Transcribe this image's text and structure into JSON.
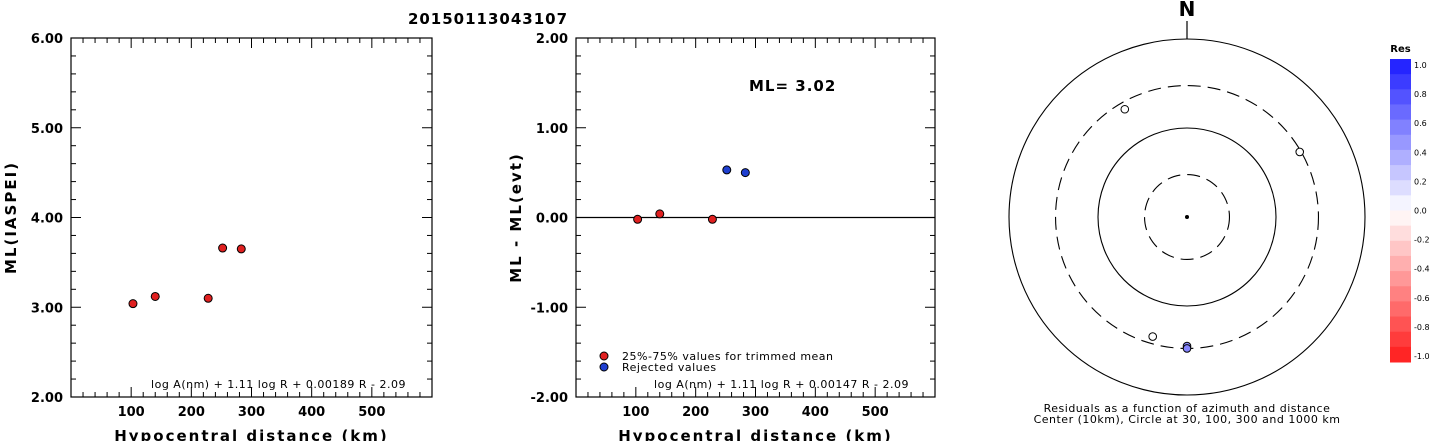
{
  "title": "20150113043107",
  "chart_data": [
    {
      "type": "scatter",
      "ylabel": "ML(IASPEI)",
      "xlabel": "Hypocentral distance (km)",
      "xlim": [
        0,
        600
      ],
      "ylim": [
        2.0,
        6.0
      ],
      "xticks": [
        "100",
        "200",
        "300",
        "400",
        "500"
      ],
      "yticks": [
        "2.00",
        "3.00",
        "4.00",
        "5.00",
        "6.00"
      ],
      "formula": "log A(nm) + 1.11 log R + 0.00189 R - 2.09",
      "points": [
        {
          "x": 103,
          "y": 3.04,
          "color": "#e02020"
        },
        {
          "x": 140,
          "y": 3.12,
          "color": "#e02020"
        },
        {
          "x": 228,
          "y": 3.1,
          "color": "#e02020"
        },
        {
          "x": 252,
          "y": 3.66,
          "color": "#e02020"
        },
        {
          "x": 283,
          "y": 3.65,
          "color": "#e02020"
        }
      ]
    },
    {
      "type": "scatter",
      "ylabel": "ML - ML(evt)",
      "xlabel": "Hypocentral distance (km)",
      "xlim": [
        0,
        600
      ],
      "ylim": [
        -2.0,
        2.0
      ],
      "xticks": [
        "100",
        "200",
        "300",
        "400",
        "500"
      ],
      "yticks": [
        "-2.00",
        "-1.00",
        "0.00",
        "1.00",
        "2.00"
      ],
      "ml_label": "ML= 3.02",
      "zero_line": true,
      "formula": "log A(nm) + 1.11 log R + 0.00147 R - 2.09",
      "legend": [
        {
          "label": "25%-75% values for trimmed mean",
          "color": "#e02020"
        },
        {
          "label": "Rejected values",
          "color": "#1f3fd0"
        }
      ],
      "points": [
        {
          "x": 103,
          "y": -0.02,
          "color": "#e02020"
        },
        {
          "x": 140,
          "y": 0.04,
          "color": "#e02020"
        },
        {
          "x": 228,
          "y": -0.02,
          "color": "#e02020"
        },
        {
          "x": 252,
          "y": 0.53,
          "color": "#1f3fd0"
        },
        {
          "x": 283,
          "y": 0.5,
          "color": "#1f3fd0"
        }
      ]
    },
    {
      "type": "polar",
      "north_label": "N",
      "caption": [
        "Residuals as a function of azimuth and distance",
        "Center (10km), Circle at 30, 100, 300 and 1000 km"
      ],
      "colorbar_title": "Res",
      "colorbar_ticks": [
        "1.0",
        "0.8",
        "0.6",
        "0.4",
        "0.2",
        "0.0",
        "-0.2",
        "-0.4",
        "-0.6",
        "-0.8",
        "-1.0"
      ],
      "colorbar_range": [
        -1.0,
        1.0
      ],
      "stations": [
        {
          "azimuth": 330,
          "distance_km": 250,
          "residual": 0.0
        },
        {
          "azimuth": 60,
          "distance_km": 290,
          "residual": 0.0
        },
        {
          "azimuth": 196,
          "distance_km": 250,
          "residual": 0.0
        },
        {
          "azimuth": 180,
          "distance_km": 282,
          "residual": 0.5
        },
        {
          "azimuth": 180,
          "distance_km": 300,
          "residual": 0.53
        }
      ]
    }
  ]
}
